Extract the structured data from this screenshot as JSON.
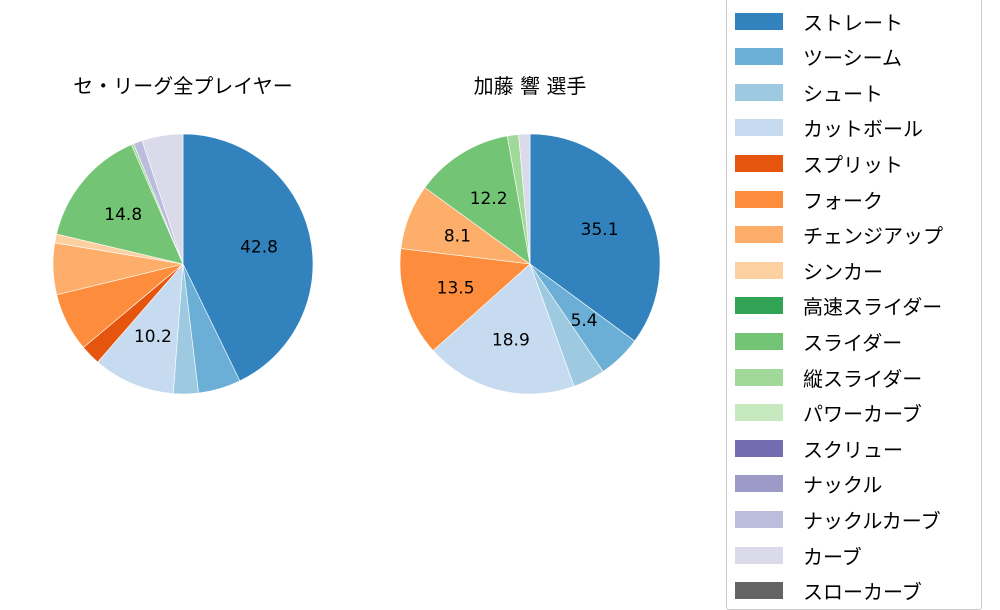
{
  "chart_data": [
    {
      "type": "pie",
      "title": "セ・リーグ全プレイヤー",
      "categories": [
        "ストレート",
        "ツーシーム",
        "シュート",
        "カットボール",
        "スプリット",
        "フォーク",
        "チェンジアップ",
        "シンカー",
        "スライダー",
        "縦スライダー",
        "ナックルカーブ",
        "カーブ"
      ],
      "values": [
        42.8,
        5.3,
        3.1,
        10.2,
        2.5,
        7.3,
        6.4,
        1.1,
        14.8,
        0.3,
        1.1,
        5.1
      ],
      "labels_shown": {
        "ストレート": "42.8",
        "カットボール": "10.2",
        "スライダー": "14.8"
      },
      "start_angle": 90,
      "direction": "clockwise"
    },
    {
      "type": "pie",
      "title": "加藤 響  選手",
      "categories": [
        "ストレート",
        "ツーシーム",
        "シュート",
        "カットボール",
        "フォーク",
        "チェンジアップ",
        "スライダー",
        "縦スライダー",
        "カーブ"
      ],
      "values": [
        35.1,
        5.4,
        4.0,
        18.9,
        13.5,
        8.1,
        12.2,
        1.4,
        1.4
      ],
      "labels_shown": {
        "ストレート": "35.1",
        "ツーシーム": "5.4",
        "カットボール": "18.9",
        "フォーク": "13.5",
        "チェンジアップ": "8.1",
        "スライダー": "12.2"
      },
      "start_angle": 90,
      "direction": "clockwise"
    }
  ],
  "legend": {
    "position": "right",
    "items": [
      {
        "label": "ストレート",
        "color": "#3182bd"
      },
      {
        "label": "ツーシーム",
        "color": "#6baed6"
      },
      {
        "label": "シュート",
        "color": "#9ecae1"
      },
      {
        "label": "カットボール",
        "color": "#c6dbef"
      },
      {
        "label": "スプリット",
        "color": "#e6550d"
      },
      {
        "label": "フォーク",
        "color": "#fd8d3c"
      },
      {
        "label": "チェンジアップ",
        "color": "#fdae6b"
      },
      {
        "label": "シンカー",
        "color": "#fdd0a2"
      },
      {
        "label": "高速スライダー",
        "color": "#31a354"
      },
      {
        "label": "スライダー",
        "color": "#74c476"
      },
      {
        "label": "縦スライダー",
        "color": "#a1d99b"
      },
      {
        "label": "パワーカーブ",
        "color": "#c7e9c0"
      },
      {
        "label": "スクリュー",
        "color": "#756bb1"
      },
      {
        "label": "ナックル",
        "color": "#9e9ac8"
      },
      {
        "label": "ナックルカーブ",
        "color": "#bcbddc"
      },
      {
        "label": "カーブ",
        "color": "#dadaeb"
      },
      {
        "label": "スローカーブ",
        "color": "#636363"
      }
    ]
  }
}
